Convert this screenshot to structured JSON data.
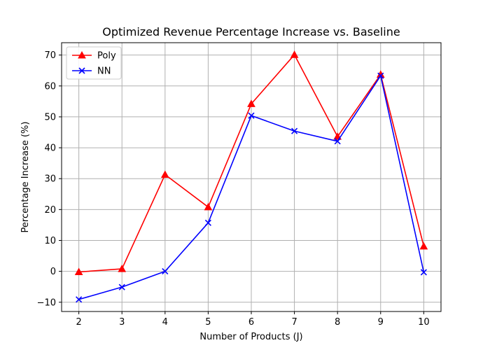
{
  "chart_data": {
    "type": "line",
    "title": "Optimized Revenue Percentage Increase vs. Baseline",
    "xlabel": "Number of Products (J)",
    "ylabel": "Percentage Increase (%)",
    "x": [
      2,
      3,
      4,
      5,
      6,
      7,
      8,
      9,
      10
    ],
    "xlim": [
      1.6,
      10.4
    ],
    "ylim": [
      -13,
      74
    ],
    "xticks": [
      2,
      3,
      4,
      5,
      6,
      7,
      8,
      9,
      10
    ],
    "yticks": [
      -10,
      0,
      10,
      20,
      30,
      40,
      50,
      60,
      70
    ],
    "grid": true,
    "legend_position": "top-left",
    "series": [
      {
        "name": "Poly",
        "color": "#ff0000",
        "marker": "triangle",
        "values": [
          -0.2,
          0.8,
          31.3,
          20.8,
          54.2,
          70.1,
          43.6,
          63.7,
          8.1
        ]
      },
      {
        "name": "NN",
        "color": "#0000ff",
        "marker": "x",
        "values": [
          -9.1,
          -5.1,
          0.0,
          15.7,
          50.4,
          45.4,
          42.1,
          63.3,
          -0.3
        ]
      }
    ]
  }
}
